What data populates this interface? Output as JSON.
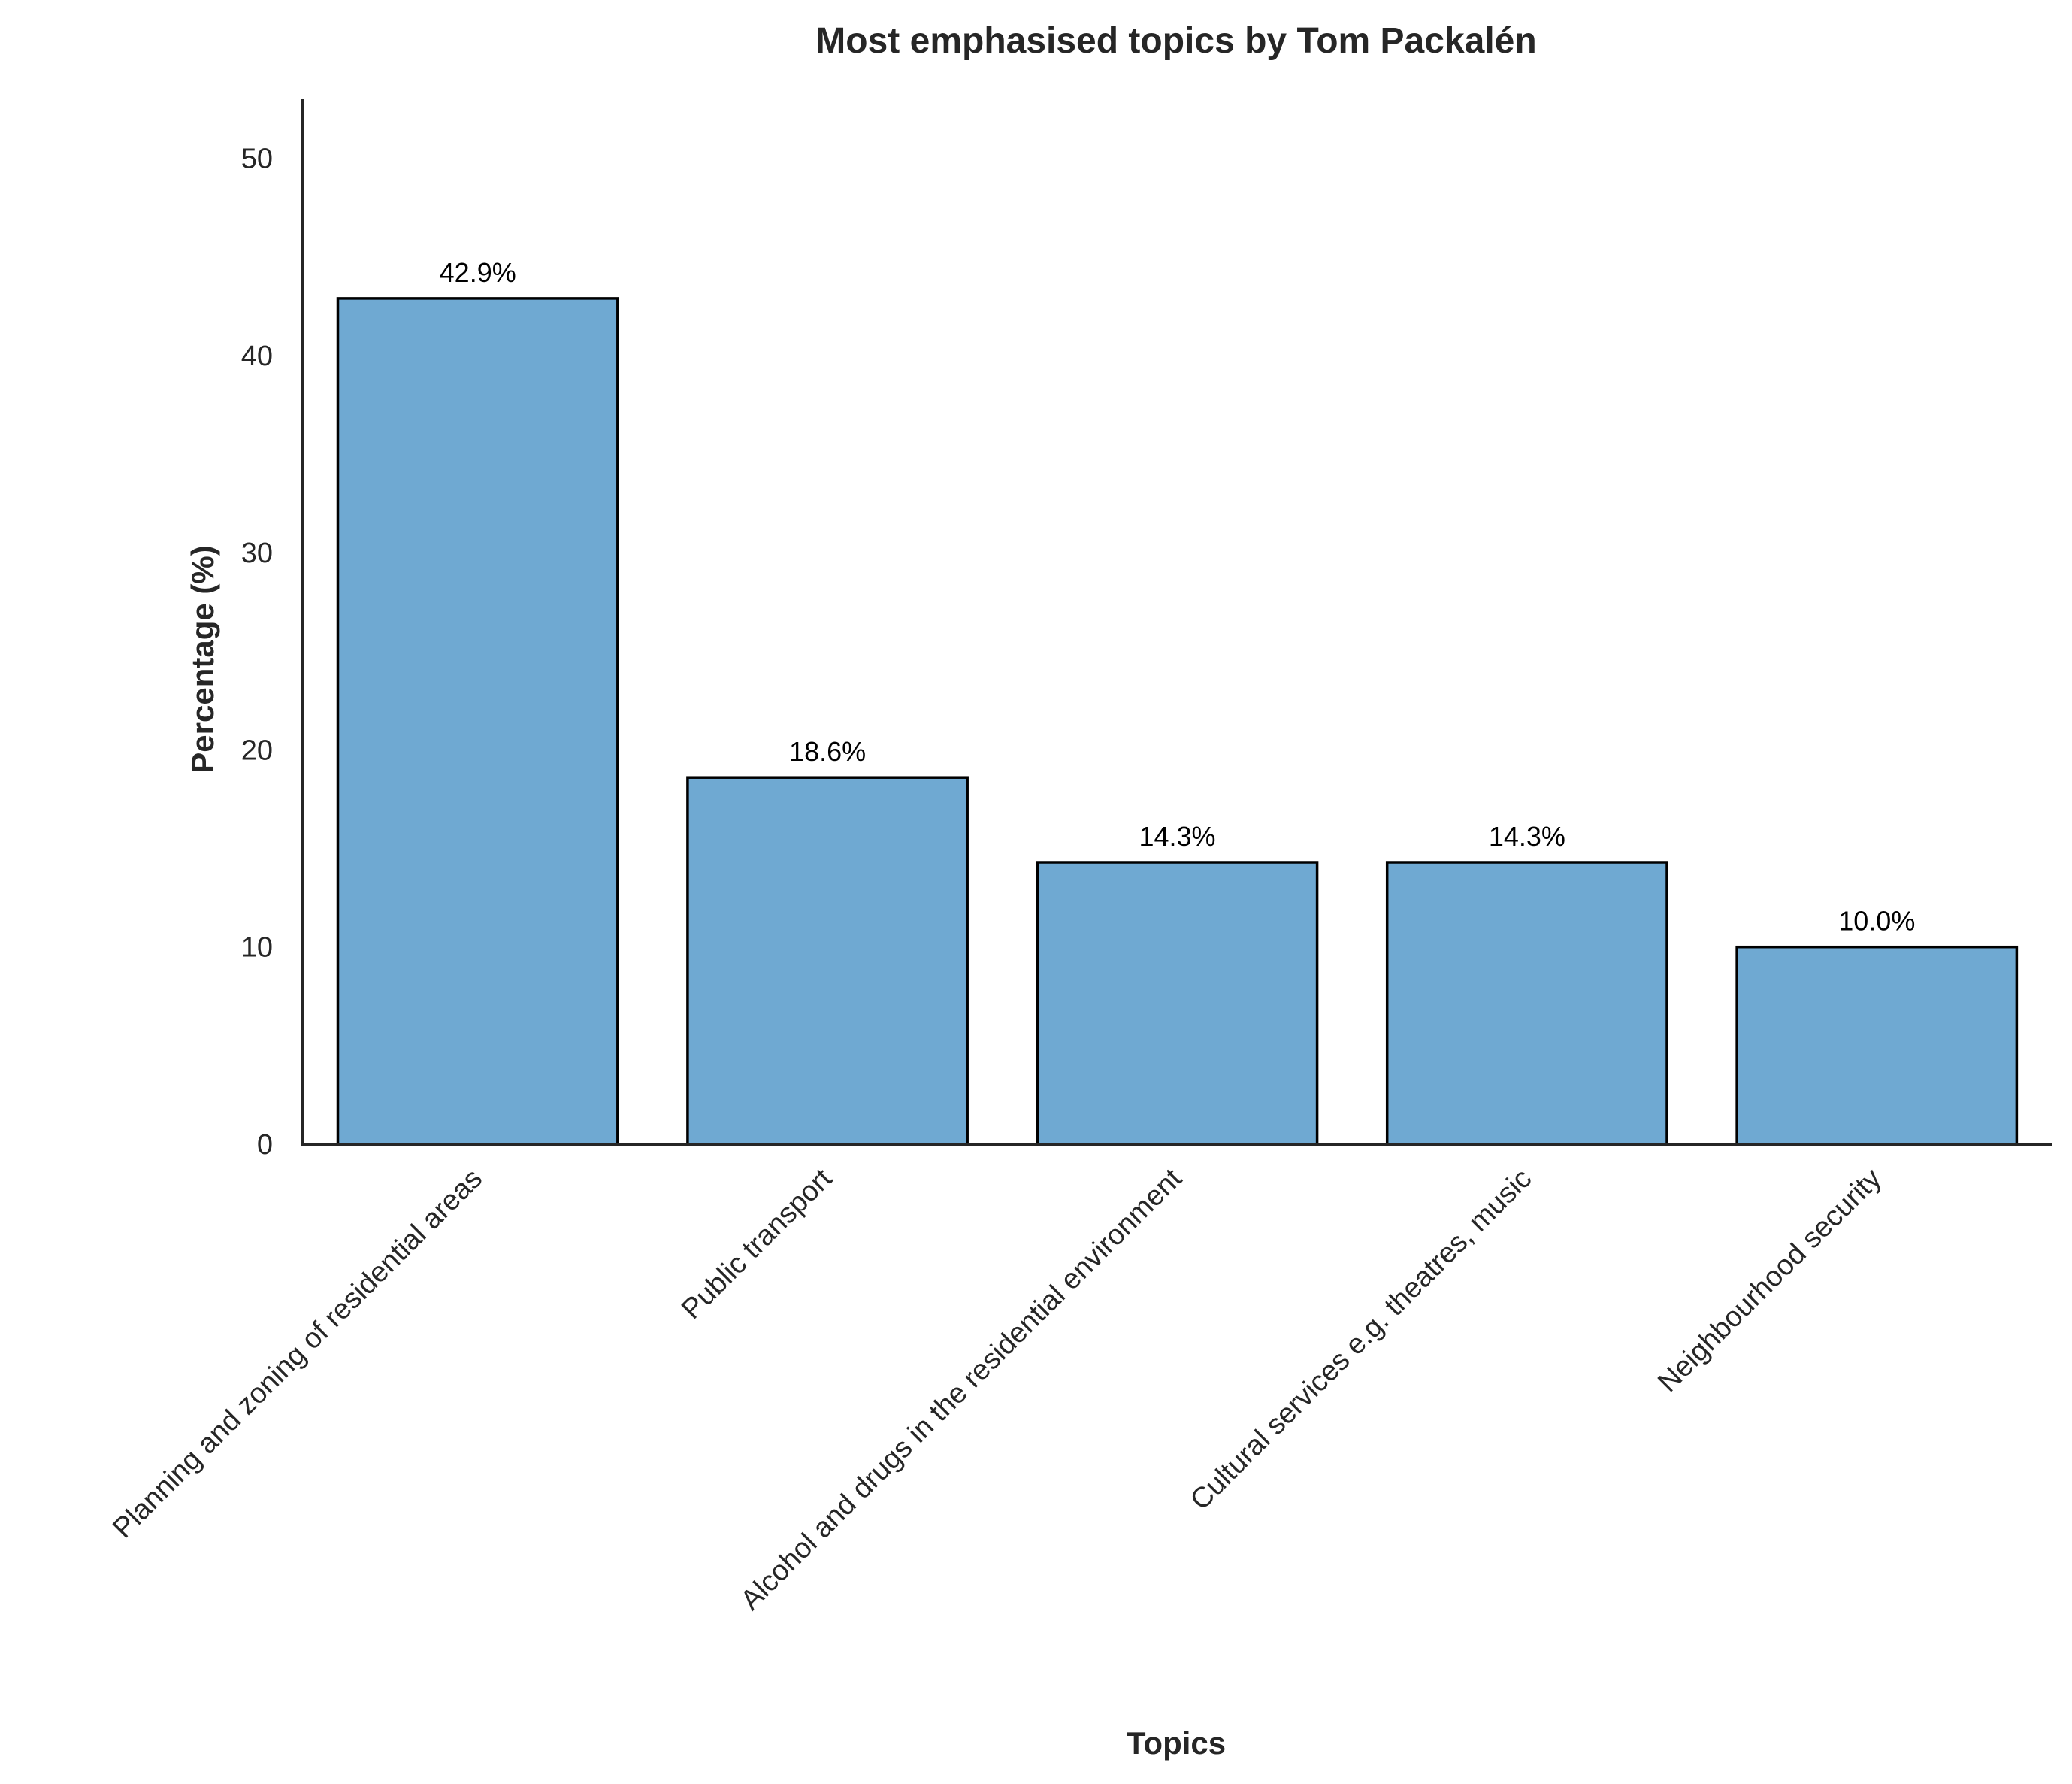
{
  "chart_data": {
    "type": "bar",
    "title": "Most emphasised topics by Tom Packalén",
    "xlabel": "Topics",
    "ylabel": "Percentage (%)",
    "categories": [
      "Planning and zoning of residential areas",
      "Public transport",
      "Alcohol and drugs in the residential environment",
      "Cultural services e.g. theatres, music",
      "Neighbourhood security"
    ],
    "values": [
      42.9,
      18.6,
      14.3,
      14.3,
      10.0
    ],
    "data_labels": [
      "42.9%",
      "18.6%",
      "14.3%",
      "14.3%",
      "10.0%"
    ],
    "ylim": [
      0,
      53
    ],
    "yticks": [
      0,
      10,
      20,
      30,
      40,
      50
    ],
    "ytick_labels": [
      "0",
      "10",
      "20",
      "30",
      "40",
      "50"
    ],
    "grid": false,
    "bar_color": "#6fa9d2",
    "bar_edge_color": "#000000",
    "axis_color": "#262626"
  }
}
